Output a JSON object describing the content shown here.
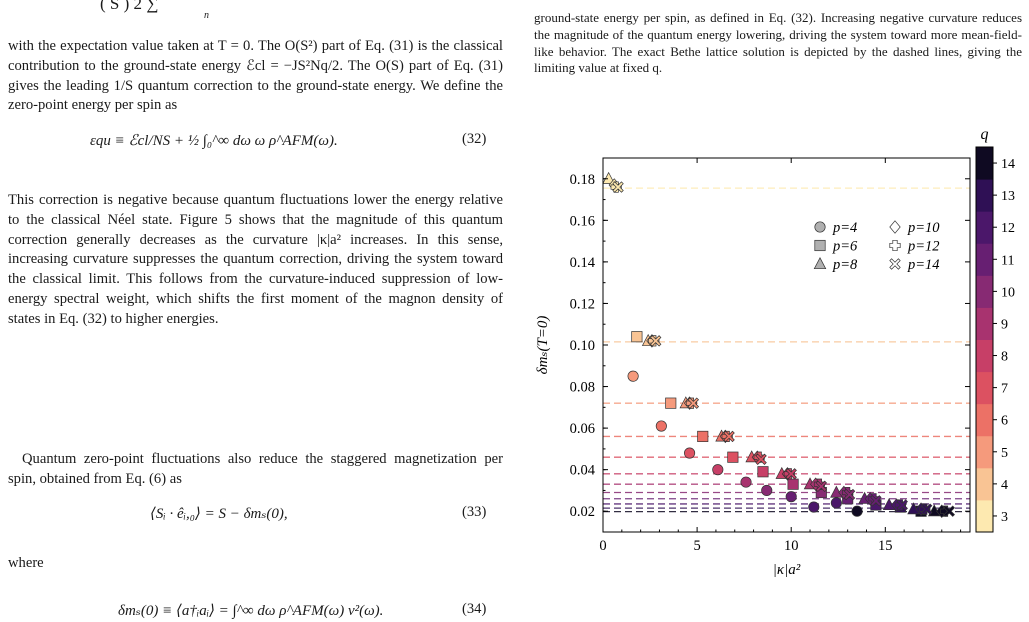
{
  "left_column": {
    "top_fragment": "(   S )        2 ∑",
    "top_fragment_sub": "n",
    "para1": "with the expectation value taken at T = 0. The O(S²) part of Eq. (31) is the classical contribution to the ground-state energy ℰcl = −JS²Nq/2. The O(S) part of Eq. (31) gives the leading 1/S quantum correction to the ground-state energy. We define the zero-point energy per spin as",
    "eq32": "εqu ≡ ℰcl/NS + ½ ∫₀^∞ dω ω ρ^AFM(ω).",
    "eq32_num": "(32)",
    "para2": "This correction is negative because quantum fluctuations lower the energy relative to the classical Néel state. Figure 5 shows that the magnitude of this quantum correction generally decreases as the curvature |κ|a² increases. In this sense, increasing curvature suppresses the quantum correction, driving the system toward the classical limit. This follows from the curvature-induced suppression of low-energy spectral weight, which shifts the first moment of the magnon density of states in Eq. (32) to higher energies.",
    "para3": "Quantum zero-point fluctuations also reduce the staggered magnetization per spin, obtained from Eq. (6) as",
    "eq33": "⟨Sᵢ · êᵢ,₀⟩ = S − δmₛ(0),",
    "eq33_num": "(33)",
    "where": "where",
    "eq34": "δmₛ(0) ≡ ⟨a†ᵢaᵢ⟩ = ∫^∞ dω ρ^AFM(ω) v²(ω).",
    "eq34_num": "(34)"
  },
  "right_column": {
    "caption": "ground-state energy per spin, as defined in Eq. (32). Increasing negative curvature reduces the magnitude of the quantum energy lowering, driving the system toward more mean-field-like behavior. The exact Bethe lattice solution is depicted by the dashed lines, giving the limiting value at fixed q."
  },
  "chart_data": {
    "type": "scatter",
    "xlabel": "|κ|a²",
    "ylabel": "δmₛ(T=0)",
    "xlim": [
      0,
      19.5
    ],
    "ylim": [
      0.01,
      0.19
    ],
    "xticks": [
      0,
      5,
      10,
      15
    ],
    "yticks": [
      0.02,
      0.04,
      0.06,
      0.08,
      0.1,
      0.12,
      0.14,
      0.16,
      0.18
    ],
    "colorbar": {
      "label": "q",
      "ticks": [
        3,
        4,
        5,
        6,
        7,
        8,
        9,
        10,
        11,
        12,
        13,
        14
      ],
      "colors": [
        "#fde9b0",
        "#f9c494",
        "#f59a7c",
        "#ec7166",
        "#dc5161",
        "#c73f67",
        "#a8336f",
        "#872a73",
        "#671f72",
        "#4b176a",
        "#2f1055",
        "#0f0a22"
      ]
    },
    "legend": {
      "placement": "top-right",
      "entries": [
        {
          "label": "p=4",
          "marker": "circle"
        },
        {
          "label": "p=10",
          "marker": "diamond"
        },
        {
          "label": "p=6",
          "marker": "square"
        },
        {
          "label": "p=12",
          "marker": "plus"
        },
        {
          "label": "p=8",
          "marker": "triangle"
        },
        {
          "label": "p=14",
          "marker": "cross"
        }
      ]
    },
    "bethe_lines": [
      {
        "q": 3,
        "y": 0.1755
      },
      {
        "q": 4,
        "y": 0.1015
      },
      {
        "q": 5,
        "y": 0.072
      },
      {
        "q": 6,
        "y": 0.056
      },
      {
        "q": 7,
        "y": 0.046
      },
      {
        "q": 8,
        "y": 0.038
      },
      {
        "q": 9,
        "y": 0.033
      },
      {
        "q": 10,
        "y": 0.029
      },
      {
        "q": 11,
        "y": 0.026
      },
      {
        "q": 12,
        "y": 0.0235
      },
      {
        "q": 13,
        "y": 0.0215
      },
      {
        "q": 14,
        "y": 0.0198
      }
    ],
    "series": [
      {
        "marker": "circle",
        "points": [
          {
            "x": 1.6,
            "y": 0.085,
            "q": 5
          },
          {
            "x": 3.1,
            "y": 0.061,
            "q": 6
          },
          {
            "x": 4.6,
            "y": 0.048,
            "q": 7
          },
          {
            "x": 6.1,
            "y": 0.04,
            "q": 8
          },
          {
            "x": 7.6,
            "y": 0.034,
            "q": 9
          },
          {
            "x": 8.7,
            "y": 0.03,
            "q": 10
          },
          {
            "x": 10.0,
            "y": 0.027,
            "q": 11
          },
          {
            "x": 11.2,
            "y": 0.022,
            "q": 12
          },
          {
            "x": 12.4,
            "y": 0.024,
            "q": 12
          },
          {
            "x": 13.5,
            "y": 0.02,
            "q": 14
          }
        ]
      },
      {
        "marker": "square",
        "points": [
          {
            "x": 1.8,
            "y": 0.104,
            "q": 4
          },
          {
            "x": 3.6,
            "y": 0.072,
            "q": 5
          },
          {
            "x": 5.3,
            "y": 0.056,
            "q": 6
          },
          {
            "x": 6.9,
            "y": 0.046,
            "q": 7
          },
          {
            "x": 8.5,
            "y": 0.039,
            "q": 8
          },
          {
            "x": 10.1,
            "y": 0.033,
            "q": 9
          },
          {
            "x": 11.6,
            "y": 0.029,
            "q": 10
          },
          {
            "x": 13.0,
            "y": 0.026,
            "q": 11
          },
          {
            "x": 14.5,
            "y": 0.023,
            "q": 12
          },
          {
            "x": 15.8,
            "y": 0.022,
            "q": 13
          },
          {
            "x": 16.9,
            "y": 0.02,
            "q": 14
          }
        ]
      },
      {
        "marker": "triangle",
        "points": [
          {
            "x": 0.3,
            "y": 0.18,
            "q": 3
          },
          {
            "x": 2.4,
            "y": 0.102,
            "q": 4
          },
          {
            "x": 4.4,
            "y": 0.072,
            "q": 5
          },
          {
            "x": 6.3,
            "y": 0.056,
            "q": 6
          },
          {
            "x": 7.9,
            "y": 0.046,
            "q": 7
          },
          {
            "x": 9.5,
            "y": 0.038,
            "q": 8
          },
          {
            "x": 11.0,
            "y": 0.033,
            "q": 9
          },
          {
            "x": 12.4,
            "y": 0.029,
            "q": 10
          },
          {
            "x": 13.9,
            "y": 0.026,
            "q": 11
          },
          {
            "x": 15.2,
            "y": 0.023,
            "q": 12
          },
          {
            "x": 16.5,
            "y": 0.021,
            "q": 13
          },
          {
            "x": 17.6,
            "y": 0.02,
            "q": 14
          }
        ]
      },
      {
        "marker": "diamond",
        "points": [
          {
            "x": 0.6,
            "y": 0.177,
            "q": 3
          },
          {
            "x": 2.6,
            "y": 0.102,
            "q": 4
          },
          {
            "x": 4.6,
            "y": 0.072,
            "q": 5
          },
          {
            "x": 6.5,
            "y": 0.056,
            "q": 6
          },
          {
            "x": 8.2,
            "y": 0.046,
            "q": 7
          },
          {
            "x": 9.8,
            "y": 0.038,
            "q": 8
          },
          {
            "x": 11.3,
            "y": 0.033,
            "q": 9
          },
          {
            "x": 12.8,
            "y": 0.029,
            "q": 10
          },
          {
            "x": 14.2,
            "y": 0.026,
            "q": 11
          },
          {
            "x": 15.6,
            "y": 0.023,
            "q": 12
          },
          {
            "x": 16.9,
            "y": 0.021,
            "q": 13
          },
          {
            "x": 18.0,
            "y": 0.02,
            "q": 14
          }
        ]
      },
      {
        "marker": "plus",
        "points": [
          {
            "x": 0.7,
            "y": 0.176,
            "q": 3
          },
          {
            "x": 2.7,
            "y": 0.102,
            "q": 4
          },
          {
            "x": 4.7,
            "y": 0.072,
            "q": 5
          },
          {
            "x": 6.6,
            "y": 0.056,
            "q": 6
          },
          {
            "x": 8.3,
            "y": 0.046,
            "q": 7
          },
          {
            "x": 9.9,
            "y": 0.038,
            "q": 8
          },
          {
            "x": 11.5,
            "y": 0.033,
            "q": 9
          },
          {
            "x": 13.0,
            "y": 0.029,
            "q": 10
          },
          {
            "x": 14.4,
            "y": 0.026,
            "q": 11
          },
          {
            "x": 15.8,
            "y": 0.023,
            "q": 12
          },
          {
            "x": 17.1,
            "y": 0.021,
            "q": 13
          },
          {
            "x": 18.2,
            "y": 0.02,
            "q": 14
          }
        ]
      },
      {
        "marker": "cross",
        "points": [
          {
            "x": 0.8,
            "y": 0.176,
            "q": 3
          },
          {
            "x": 2.8,
            "y": 0.102,
            "q": 4
          },
          {
            "x": 4.8,
            "y": 0.072,
            "q": 5
          },
          {
            "x": 6.7,
            "y": 0.056,
            "q": 6
          },
          {
            "x": 8.4,
            "y": 0.045,
            "q": 7
          },
          {
            "x": 10.0,
            "y": 0.038,
            "q": 8
          },
          {
            "x": 11.6,
            "y": 0.032,
            "q": 9
          },
          {
            "x": 13.1,
            "y": 0.028,
            "q": 10
          },
          {
            "x": 14.5,
            "y": 0.025,
            "q": 11
          },
          {
            "x": 15.9,
            "y": 0.023,
            "q": 12
          },
          {
            "x": 17.2,
            "y": 0.021,
            "q": 13
          },
          {
            "x": 18.4,
            "y": 0.02,
            "q": 14
          }
        ]
      }
    ]
  }
}
